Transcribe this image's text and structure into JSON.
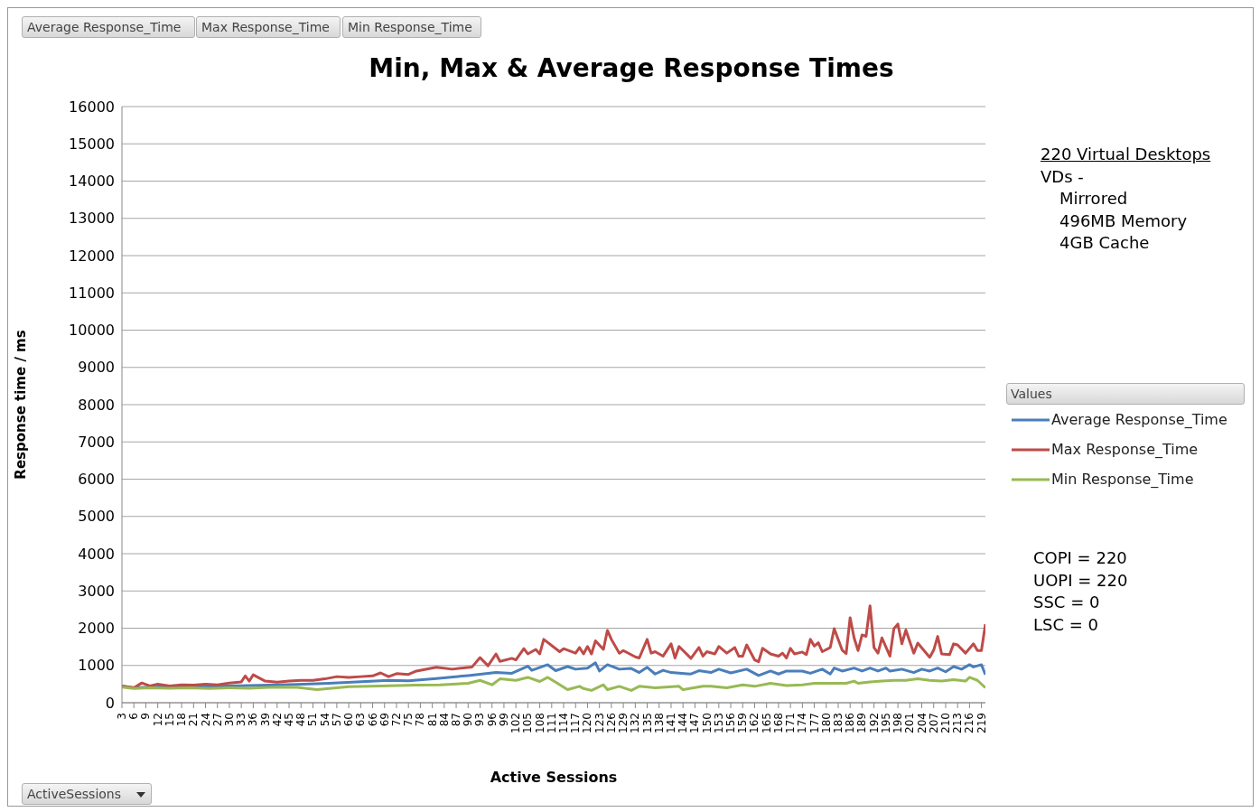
{
  "chart_data": {
    "type": "line",
    "title": "Min, Max & Average Response Times",
    "xlabel": "Active Sessions",
    "ylabel": "Response time / ms",
    "legend_title": "Values",
    "legend": "right",
    "grid": "y",
    "xlim": [
      3,
      220
    ],
    "ylim": [
      0,
      16000
    ],
    "xticks": [
      3,
      6,
      9,
      12,
      15,
      18,
      21,
      24,
      27,
      30,
      33,
      36,
      39,
      42,
      45,
      48,
      51,
      54,
      57,
      60,
      63,
      66,
      69,
      72,
      75,
      78,
      81,
      84,
      87,
      90,
      93,
      96,
      99,
      102,
      105,
      108,
      111,
      114,
      117,
      120,
      123,
      126,
      129,
      132,
      135,
      138,
      141,
      144,
      147,
      150,
      153,
      156,
      159,
      162,
      165,
      168,
      171,
      174,
      177,
      180,
      183,
      186,
      189,
      192,
      195,
      198,
      201,
      204,
      207,
      210,
      213,
      216,
      219
    ],
    "yticks": [
      0,
      1000,
      2000,
      3000,
      4000,
      5000,
      6000,
      7000,
      8000,
      9000,
      10000,
      11000,
      12000,
      13000,
      14000,
      15000,
      16000
    ],
    "annotations": [
      "Average Response_Time",
      "Max Response_Time",
      "Min Response_Time",
      "ActiveSessions",
      "220 Virtual Desktops",
      "VDs -",
      "Mirrored",
      "496MB Memory",
      "4GB Cache",
      "COPI = 220",
      "UOPI = 220",
      "SSC = 0",
      "LSC = 0"
    ],
    "series": [
      {
        "name": "Average Response_Time",
        "color": "#4a7ebb",
        "x": [
          3,
          6,
          10,
          15,
          20,
          25,
          30,
          35,
          40,
          47,
          55,
          62,
          70,
          75,
          82,
          90,
          97,
          101,
          105,
          106,
          110,
          112,
          115,
          117,
          120,
          122,
          123,
          125,
          128,
          131,
          133,
          135,
          137,
          139,
          141,
          146,
          148,
          151,
          153,
          156,
          160,
          163,
          166,
          168,
          170,
          174,
          176,
          179,
          181,
          182,
          184,
          187,
          189,
          191,
          193,
          195,
          196,
          199,
          202,
          204,
          206,
          208,
          210,
          212,
          214,
          216,
          217,
          219,
          220
        ],
        "values": [
          450,
          400,
          420,
          430,
          430,
          440,
          450,
          460,
          470,
          490,
          520,
          560,
          600,
          590,
          650,
          730,
          810,
          790,
          980,
          870,
          1020,
          860,
          970,
          900,
          930,
          1070,
          850,
          1020,
          900,
          920,
          810,
          950,
          770,
          870,
          810,
          770,
          860,
          810,
          900,
          800,
          900,
          730,
          850,
          770,
          850,
          850,
          790,
          900,
          770,
          930,
          850,
          930,
          850,
          930,
          850,
          930,
          850,
          900,
          810,
          900,
          850,
          930,
          830,
          970,
          900,
          1020,
          960,
          1020,
          750
        ]
      },
      {
        "name": "Max Response_Time",
        "color": "#be4b48",
        "x": [
          3,
          6,
          8,
          10,
          12,
          15,
          18,
          21,
          24,
          27,
          30,
          33,
          34,
          35,
          36,
          39,
          42,
          45,
          48,
          51,
          54,
          57,
          60,
          63,
          66,
          68,
          70,
          72,
          75,
          77,
          82,
          86,
          91,
          93,
          95,
          97,
          98,
          101,
          102,
          104,
          105,
          107,
          108,
          109,
          113,
          114,
          117,
          118,
          119,
          120,
          121,
          122,
          124,
          125,
          126,
          128,
          129,
          132,
          133,
          135,
          136,
          137,
          139,
          141,
          142,
          143,
          146,
          148,
          149,
          150,
          152,
          153,
          155,
          157,
          158,
          159,
          160,
          162,
          163,
          164,
          166,
          168,
          169,
          170,
          171,
          172,
          174,
          175,
          176,
          177,
          178,
          179,
          181,
          182,
          184,
          185,
          186,
          187,
          188,
          189,
          190,
          191,
          192,
          193,
          194,
          196,
          197,
          198,
          199,
          200,
          202,
          203,
          206,
          207,
          208,
          209,
          211,
          212,
          213,
          215,
          217,
          218,
          219,
          220
        ],
        "values": [
          440,
          400,
          530,
          450,
          500,
          450,
          480,
          470,
          500,
          480,
          530,
          560,
          720,
          580,
          750,
          580,
          550,
          580,
          600,
          600,
          640,
          700,
          680,
          700,
          720,
          800,
          700,
          780,
          760,
          850,
          950,
          900,
          960,
          1210,
          990,
          1310,
          1110,
          1190,
          1150,
          1450,
          1310,
          1430,
          1310,
          1700,
          1370,
          1450,
          1330,
          1480,
          1310,
          1510,
          1310,
          1660,
          1430,
          1940,
          1700,
          1330,
          1400,
          1230,
          1200,
          1700,
          1330,
          1370,
          1250,
          1580,
          1200,
          1510,
          1190,
          1480,
          1250,
          1370,
          1310,
          1510,
          1330,
          1480,
          1250,
          1250,
          1550,
          1150,
          1100,
          1460,
          1310,
          1250,
          1330,
          1200,
          1460,
          1310,
          1360,
          1290,
          1700,
          1520,
          1610,
          1370,
          1480,
          1990,
          1410,
          1320,
          2280,
          1740,
          1400,
          1820,
          1780,
          2600,
          1480,
          1330,
          1740,
          1250,
          1990,
          2110,
          1580,
          1950,
          1330,
          1600,
          1220,
          1410,
          1780,
          1310,
          1290,
          1580,
          1550,
          1330,
          1580,
          1400,
          1400,
          2110
        ]
      },
      {
        "name": "Min Response_Time",
        "color": "#98b954",
        "x": [
          3,
          6,
          10,
          15,
          20,
          25,
          30,
          35,
          40,
          47,
          52,
          60,
          68,
          77,
          83,
          90,
          93,
          96,
          98,
          102,
          105,
          108,
          110,
          112,
          115,
          118,
          119,
          121,
          124,
          125,
          128,
          131,
          133,
          137,
          143,
          144,
          149,
          151,
          155,
          159,
          162,
          166,
          170,
          174,
          177,
          181,
          185,
          187,
          188,
          191,
          194,
          197,
          200,
          203,
          206,
          209,
          212,
          215,
          216,
          218,
          220
        ],
        "values": [
          420,
          380,
          400,
          390,
          400,
          380,
          400,
          390,
          410,
          410,
          350,
          430,
          450,
          470,
          480,
          520,
          600,
          480,
          640,
          600,
          680,
          570,
          680,
          550,
          350,
          440,
          380,
          330,
          480,
          350,
          440,
          330,
          440,
          400,
          440,
          350,
          440,
          440,
          400,
          480,
          440,
          520,
          460,
          480,
          520,
          520,
          520,
          580,
          520,
          560,
          580,
          600,
          600,
          640,
          600,
          580,
          620,
          580,
          680,
          600,
          400
        ]
      }
    ]
  }
}
